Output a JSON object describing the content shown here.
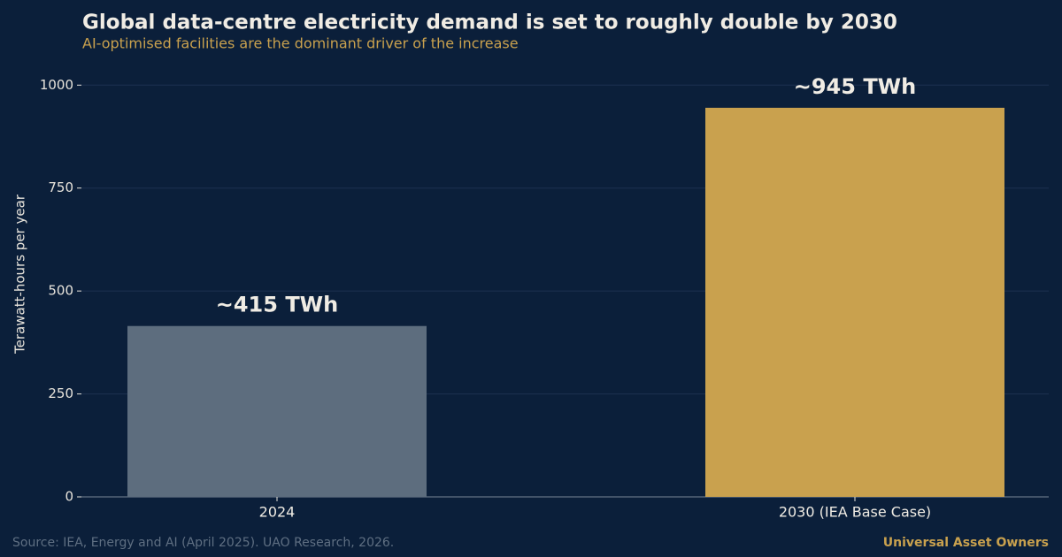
{
  "chart_data": {
    "type": "bar",
    "title": "Global data-centre electricity demand is set to roughly double by 2030",
    "subtitle": "AI-optimised facilities are the dominant driver of the increase",
    "y_label": "Terawatt-hours per year",
    "categories": [
      "2024",
      "2030 (IEA Base Case)"
    ],
    "values": [
      415,
      945
    ],
    "value_labels": [
      "~415 TWh",
      "~945 TWh"
    ],
    "colors": [
      "#5d6d7e",
      "#c9a14e"
    ],
    "ylim": [
      0,
      1050
    ],
    "yticks": [
      0,
      250,
      500,
      750,
      1000
    ],
    "grid": true,
    "source": "Source: IEA, Energy and AI (April 2025).  UAO Research, 2026.",
    "brand": "Universal Asset Owners"
  }
}
